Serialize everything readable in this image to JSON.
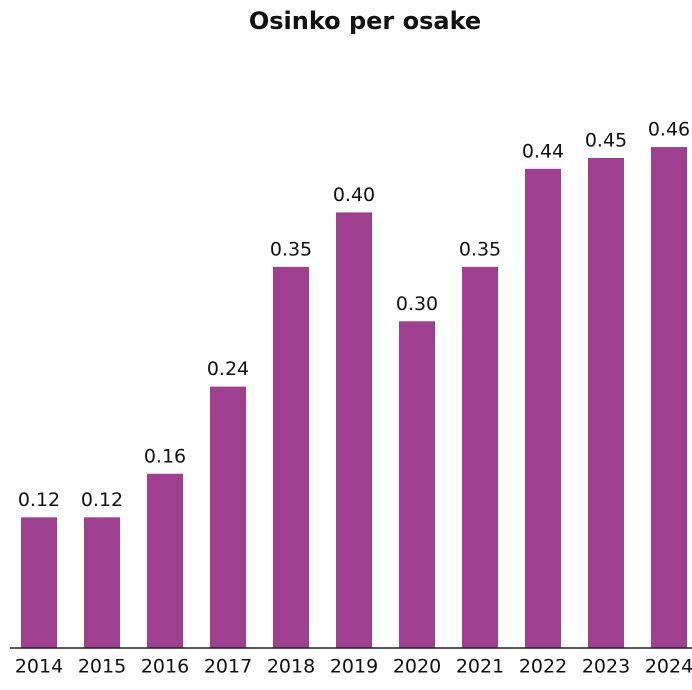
{
  "chart_data": {
    "type": "bar",
    "title": "Osinko per osake",
    "categories": [
      "2014",
      "2015",
      "2016",
      "2017",
      "2018",
      "2019",
      "2020",
      "2021",
      "2022",
      "2023",
      "2024"
    ],
    "values": [
      0.12,
      0.12,
      0.16,
      0.24,
      0.35,
      0.4,
      0.3,
      0.35,
      0.44,
      0.45,
      0.46
    ],
    "value_labels": [
      "0.12",
      "0.12",
      "0.16",
      "0.24",
      "0.35",
      "0.40",
      "0.30",
      "0.35",
      "0.44",
      "0.45",
      "0.46"
    ],
    "color": "#9e3f8f",
    "ylim": [
      0,
      0.5
    ]
  }
}
